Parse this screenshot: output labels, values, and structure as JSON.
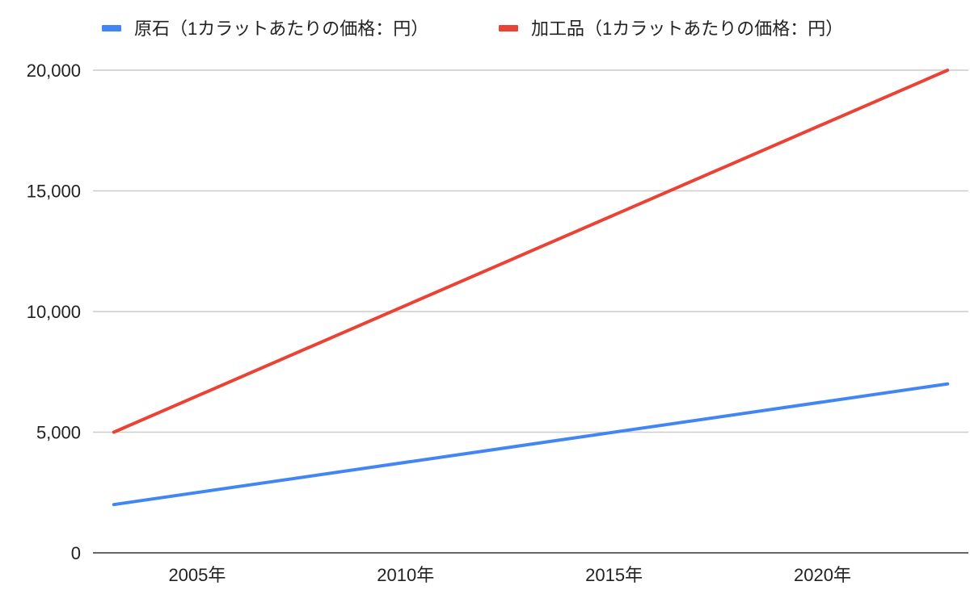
{
  "chart_data": {
    "type": "line",
    "x": [
      2003,
      2023
    ],
    "series": [
      {
        "name": "原石（1カラットあたりの価格：円）",
        "color": "#4285f4",
        "values": [
          2000,
          7000
        ]
      },
      {
        "name": "加工品（1カラットあたりの価格：円）",
        "color": "#ea4335",
        "values": [
          5000,
          20000
        ]
      }
    ],
    "xlim": [
      2002.5,
      2023.5
    ],
    "ylim": [
      0,
      20000
    ],
    "x_ticks": [
      {
        "value": 2005,
        "label": "2005年"
      },
      {
        "value": 2010,
        "label": "2010年"
      },
      {
        "value": 2015,
        "label": "2015年"
      },
      {
        "value": 2020,
        "label": "2020年"
      }
    ],
    "y_ticks": [
      {
        "value": 0,
        "label": "0"
      },
      {
        "value": 5000,
        "label": "5,000"
      },
      {
        "value": 10000,
        "label": "10,000"
      },
      {
        "value": 15000,
        "label": "15,000"
      },
      {
        "value": 20000,
        "label": "20,000"
      }
    ],
    "grid": true,
    "legend_position": "top-left"
  }
}
